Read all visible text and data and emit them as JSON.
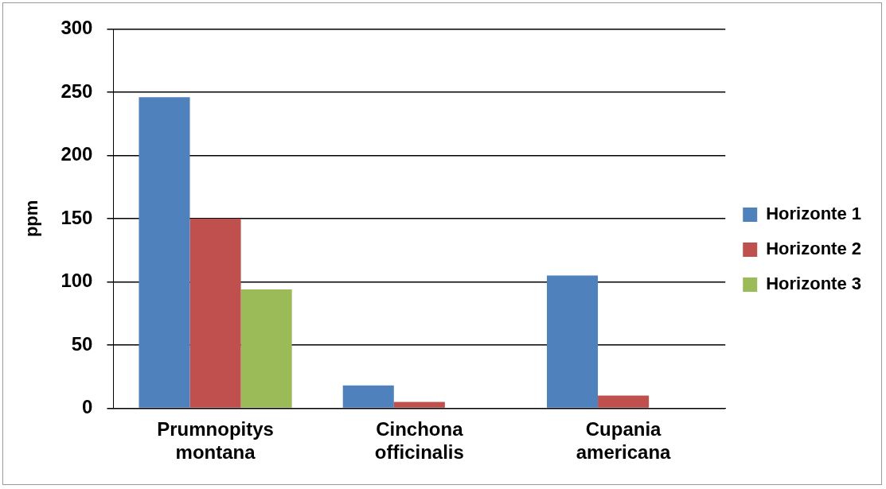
{
  "chart_data": {
    "type": "bar",
    "ylabel": "ppm",
    "categories": [
      "Prumnopitys montana",
      "Cinchona officinalis",
      "Cupania americana"
    ],
    "series": [
      {
        "name": "Horizonte 1",
        "color": "#4f81bd",
        "values": [
          246,
          18,
          105
        ]
      },
      {
        "name": "Horizonte 2",
        "color": "#c0504d",
        "values": [
          150,
          5,
          10
        ]
      },
      {
        "name": "Horizonte 3",
        "color": "#9bbb59",
        "values": [
          94,
          0,
          0
        ]
      }
    ],
    "ylim": [
      0,
      300
    ],
    "yticks": [
      0,
      50,
      100,
      150,
      200,
      250,
      300
    ],
    "grid": "y",
    "legend": "right"
  }
}
